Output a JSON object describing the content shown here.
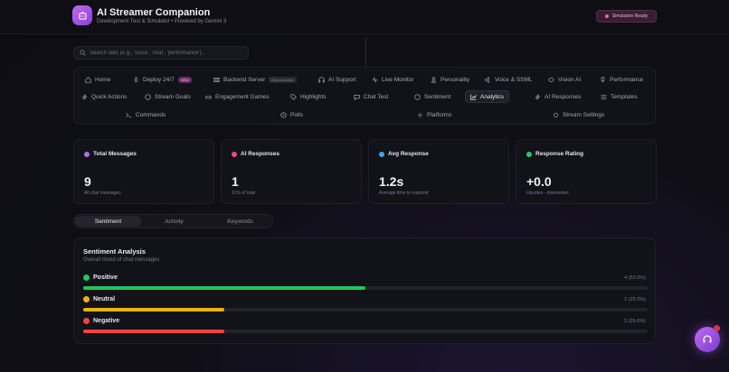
{
  "header": {
    "title": "AI Streamer Companion",
    "subtitle": "Development Tool & Simulator • Powered by Gemini 3",
    "status_badge": "Simulation Ready"
  },
  "search": {
    "placeholder": "Search tabs (e.g., 'voice', 'chat', 'performance')...",
    "value": ""
  },
  "tabs": [
    {
      "label": "Home",
      "icon": "home-icon"
    },
    {
      "label": "Deploy 24/7",
      "icon": "rocket-icon",
      "badge": "NEW"
    },
    {
      "label": "Backend Server",
      "icon": "server-icon",
      "badge": "Disconnected"
    },
    {
      "label": "AI Support",
      "icon": "headset-icon"
    },
    {
      "label": "Live Monitor",
      "icon": "signal-icon"
    },
    {
      "label": "Personality",
      "icon": "user-icon"
    },
    {
      "label": "Voice & SSML",
      "icon": "speaker-icon"
    },
    {
      "label": "Vision AI",
      "icon": "eye-icon"
    },
    {
      "label": "Performance",
      "icon": "trophy-icon"
    },
    {
      "label": "Quick Actions",
      "icon": "bolt-icon"
    },
    {
      "label": "Stream Goals",
      "icon": "target-icon"
    },
    {
      "label": "Engagement Games",
      "icon": "gamepad-icon"
    },
    {
      "label": "Highlights",
      "icon": "tag-icon"
    },
    {
      "label": "Chat Test",
      "icon": "chat-icon"
    },
    {
      "label": "Sentiment",
      "icon": "smile-icon"
    },
    {
      "label": "Analytics",
      "icon": "chart-icon",
      "active": true
    },
    {
      "label": "AI Responses",
      "icon": "bolt-icon"
    },
    {
      "label": "Templates",
      "icon": "list-icon"
    },
    {
      "label": "Commands",
      "icon": "terminal-icon"
    },
    {
      "label": "Polls",
      "icon": "poll-icon"
    },
    {
      "label": "Platforms",
      "icon": "link-icon"
    },
    {
      "label": "Stream Settings",
      "icon": "gear-icon"
    }
  ],
  "stats": [
    {
      "title": "Total Messages",
      "value": "9",
      "sub": "All chat messages",
      "icon": "message-icon",
      "color": "#b56ce8"
    },
    {
      "title": "AI Responses",
      "value": "1",
      "sub": "11% of total",
      "icon": "bolt-icon",
      "color": "#e0508a"
    },
    {
      "title": "Avg Response",
      "value": "1.2s",
      "sub": "Average time to respond",
      "icon": "trend-icon",
      "color": "#4aa0e8"
    },
    {
      "title": "Response Rating",
      "value": "+0.0",
      "sub": "Upvotes - downvotes",
      "icon": "rating-icon",
      "color": "#2ec46a"
    }
  ],
  "segments": [
    "Sentiment",
    "Activity",
    "Keywords"
  ],
  "sentiment": {
    "title": "Sentiment Analysis",
    "subtitle": "Overall mood of chat messages",
    "rows": [
      {
        "label": "Positive",
        "stat": "4 (50.0%)",
        "fraction": 0.5,
        "color": "#22c55e",
        "icon": "positive-face-icon"
      },
      {
        "label": "Neutral",
        "stat": "2 (25.0%)",
        "fraction": 0.25,
        "color": "#eab308",
        "icon": "neutral-face-icon"
      },
      {
        "label": "Negative",
        "stat": "2 (25.0%)",
        "fraction": 0.25,
        "color": "#ef4444",
        "icon": "negative-face-icon"
      }
    ]
  }
}
